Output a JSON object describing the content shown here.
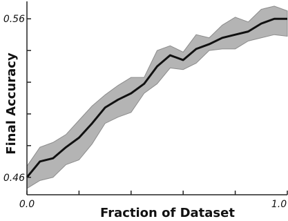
{
  "chart_data": {
    "type": "line",
    "title": "",
    "xlabel": "Fraction of Dataset",
    "ylabel": "Final Accuracy",
    "xlim": [
      0.0,
      1.0
    ],
    "ylim": [
      0.449,
      0.571
    ],
    "x_tick_labels": [
      {
        "value": 0.0,
        "label": "0.0"
      },
      {
        "value": 1.0,
        "label": "1.0"
      }
    ],
    "y_tick_labels": [
      {
        "value": 0.46,
        "label": "0.46"
      },
      {
        "value": 0.56,
        "label": "0.56"
      }
    ],
    "x_minor_ticks": [
      0.0,
      0.2,
      0.4,
      0.6,
      0.8,
      1.0
    ],
    "y_minor_ticks": [
      0.46,
      0.48,
      0.5,
      0.52,
      0.54,
      0.56
    ],
    "grid": false,
    "colors": {
      "line": "#111111",
      "band": "#b4b4b4",
      "band_edge": "#8c8c8c",
      "axis": "#222222"
    },
    "series": [
      {
        "x": [
          0.0,
          0.05,
          0.1,
          0.15,
          0.2,
          0.25,
          0.3,
          0.35,
          0.4,
          0.45,
          0.5,
          0.55,
          0.6,
          0.65,
          0.7,
          0.75,
          0.8,
          0.85,
          0.9,
          0.95,
          1.0
        ],
        "mean": [
          0.46,
          0.47,
          0.472,
          0.479,
          0.485,
          0.494,
          0.504,
          0.509,
          0.513,
          0.519,
          0.53,
          0.537,
          0.534,
          0.541,
          0.544,
          0.548,
          0.55,
          0.552,
          0.557,
          0.56,
          0.56
        ],
        "upper": [
          0.467,
          0.479,
          0.482,
          0.487,
          0.496,
          0.505,
          0.512,
          0.518,
          0.523,
          0.523,
          0.54,
          0.543,
          0.539,
          0.55,
          0.548,
          0.556,
          0.561,
          0.558,
          0.566,
          0.568,
          0.565
        ],
        "lower": [
          0.453,
          0.458,
          0.46,
          0.468,
          0.471,
          0.481,
          0.494,
          0.498,
          0.501,
          0.513,
          0.519,
          0.529,
          0.528,
          0.532,
          0.54,
          0.541,
          0.541,
          0.546,
          0.548,
          0.55,
          0.549
        ]
      }
    ]
  }
}
